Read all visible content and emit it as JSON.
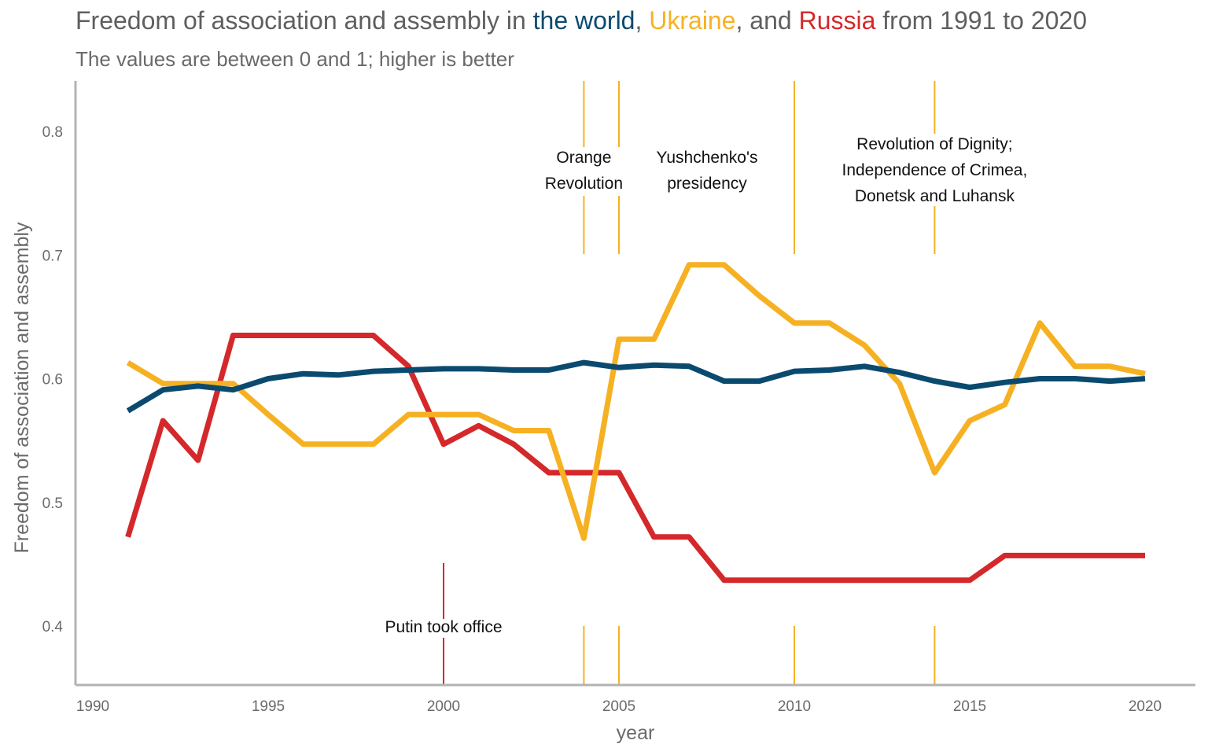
{
  "title": {
    "prefix": "Freedom of association and assembly in ",
    "world": "the world",
    "sep1": ", ",
    "ukraine": "Ukraine",
    "sep2": ", and ",
    "russia": "Russia",
    "suffix": " from 1991 to 2020"
  },
  "subtitle": "The values are between 0 and 1; higher is better",
  "colors": {
    "title_text": "#5f5f5f",
    "world": "#0b4a6f",
    "ukraine": "#f6b123",
    "russia": "#d4282b",
    "axis": "#b3b3b3"
  },
  "chart_data": {
    "type": "line",
    "xlabel": "year",
    "ylabel": "Freedom of association and assembly",
    "xlim": [
      1990,
      2021
    ],
    "ylim": [
      0.35,
      0.84
    ],
    "x_ticks": [
      1990,
      1995,
      2000,
      2005,
      2010,
      2015,
      2020
    ],
    "y_ticks": [
      0.4,
      0.5,
      0.6,
      0.7,
      0.8
    ],
    "y_tick_labels": [
      "0.4",
      "0.5",
      "0.6",
      "0.7",
      "0.8"
    ],
    "grid": false,
    "x": [
      1991,
      1992,
      1993,
      1994,
      1995,
      1996,
      1997,
      1998,
      1999,
      2000,
      2001,
      2002,
      2003,
      2004,
      2005,
      2006,
      2007,
      2008,
      2009,
      2010,
      2011,
      2012,
      2013,
      2014,
      2015,
      2016,
      2017,
      2018,
      2019,
      2020
    ],
    "series": [
      {
        "name": "the world",
        "color": "#0b4a6f",
        "values": [
          0.574,
          0.591,
          0.594,
          0.591,
          0.6,
          0.604,
          0.603,
          0.606,
          0.607,
          0.608,
          0.608,
          0.607,
          0.607,
          0.613,
          0.609,
          0.611,
          0.61,
          0.598,
          0.598,
          0.606,
          0.607,
          0.61,
          0.605,
          0.598,
          0.593,
          0.597,
          0.6,
          0.6,
          0.598,
          0.6
        ]
      },
      {
        "name": "Ukraine",
        "color": "#f6b123",
        "values": [
          0.613,
          0.596,
          0.596,
          0.596,
          0.571,
          0.547,
          0.547,
          0.547,
          0.571,
          0.571,
          0.571,
          0.558,
          0.558,
          0.471,
          0.632,
          0.632,
          0.692,
          0.692,
          0.667,
          0.645,
          0.645,
          0.627,
          0.596,
          0.524,
          0.566,
          0.579,
          0.645,
          0.61,
          0.61,
          0.604
        ]
      },
      {
        "name": "Russia",
        "color": "#d4282b",
        "values": [
          0.472,
          0.566,
          0.534,
          0.635,
          0.635,
          0.635,
          0.635,
          0.635,
          0.61,
          0.547,
          0.562,
          0.547,
          0.524,
          0.524,
          0.524,
          0.472,
          0.472,
          0.437,
          0.437,
          0.437,
          0.437,
          0.437,
          0.437,
          0.437,
          0.437,
          0.457,
          0.457,
          0.457,
          0.457,
          0.457
        ]
      }
    ],
    "annotations": [
      {
        "x": 2004,
        "lines": [
          "Orange",
          "Revolution"
        ],
        "color": "#f6b123"
      },
      {
        "x": 2005,
        "lines": [
          "Yushchenko's",
          "presidency"
        ],
        "color": "#f6b123"
      },
      {
        "x": 2010,
        "lines": [],
        "color": "#f6b123"
      },
      {
        "x": 2014,
        "lines": [
          "Revolution of Dignity;",
          "Independence of Crimea,",
          "Donetsk and Luhansk"
        ],
        "color": "#f6b123"
      },
      {
        "x": 2000,
        "lines": [
          "Putin took office"
        ],
        "color": "#d4282b"
      }
    ]
  }
}
